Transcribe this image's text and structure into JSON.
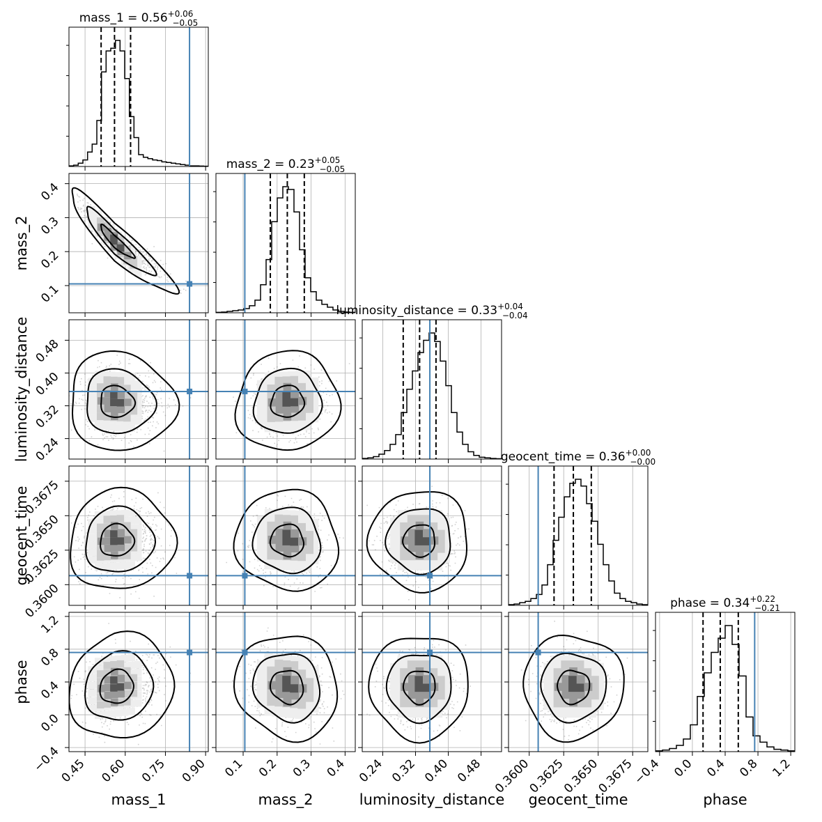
{
  "chart_data": {
    "type": "corner",
    "parameters": [
      {
        "name": "mass_1",
        "label": "mass_1",
        "range": [
          0.39,
          0.91
        ],
        "ticks": [
          0.45,
          0.6,
          0.75,
          0.9
        ],
        "tick_labels": [
          "0.45",
          "0.60",
          "0.75",
          "0.90"
        ],
        "truth": 0.84,
        "median": 0.56,
        "lower": 0.51,
        "upper": 0.62,
        "sd": 0.055,
        "skew": 0.06,
        "title_prefix": "mass_1 = 0.56",
        "title_sup": "+0.06",
        "title_sub": "−0.05",
        "hist": [
          0.5,
          1,
          2.5,
          5,
          11,
          17,
          35,
          72,
          88,
          90,
          96,
          88,
          67,
          38,
          22,
          9,
          7,
          6,
          5,
          4.5,
          3.5,
          3,
          2.5,
          2,
          1.5,
          1,
          0.5,
          0.5,
          0.3,
          0.2
        ]
      },
      {
        "name": "mass_2",
        "label": "mass_2",
        "range": [
          0.02,
          0.43
        ],
        "ticks": [
          0.1,
          0.2,
          0.3,
          0.4
        ],
        "tick_labels": [
          "0.1",
          "0.2",
          "0.3",
          "0.4"
        ],
        "truth": 0.105,
        "median": 0.23,
        "lower": 0.18,
        "upper": 0.28,
        "sd": 0.05,
        "skew": 0,
        "title_prefix": "mass_2 = 0.23",
        "title_sup": "+0.05",
        "title_sub": "−0.05",
        "hist": [
          0.3,
          0.5,
          1,
          1.5,
          2,
          3,
          5,
          9,
          20,
          38,
          65,
          82,
          90,
          88,
          72,
          45,
          25,
          15,
          9,
          6,
          4,
          2,
          1,
          0.5,
          0.3
        ]
      },
      {
        "name": "luminosity_distance",
        "label": "luminosity_distance",
        "range": [
          0.19,
          0.53
        ],
        "ticks": [
          0.24,
          0.32,
          0.4,
          0.48
        ],
        "tick_labels": [
          "0.24",
          "0.32",
          "0.40",
          "0.48"
        ],
        "truth": 0.355,
        "median": 0.33,
        "lower": 0.29,
        "upper": 0.37,
        "sd": 0.04,
        "skew": 0,
        "title_prefix": "luminosity_distance = 0.33",
        "title_sup": "+0.04",
        "title_sub": "−0.04",
        "hist": [
          0.5,
          1,
          2,
          4,
          7,
          12,
          20,
          38,
          57,
          72,
          87,
          97,
          103,
          96,
          80,
          60,
          38,
          22,
          12,
          6,
          3,
          1.5,
          1,
          0.5,
          0.3
        ]
      },
      {
        "name": "geocent_time",
        "label": "geocent_time",
        "range": [
          0.3585,
          0.3686
        ],
        "ticks": [
          0.36,
          0.3625,
          0.365,
          0.3675
        ],
        "tick_labels": [
          "0.3600",
          "0.3625",
          "0.3650",
          "0.3675"
        ],
        "truth": 0.36065,
        "median": 0.3632,
        "lower": 0.3618,
        "upper": 0.3645,
        "sd": 0.0012,
        "skew": 0,
        "title_prefix": "geocent_time = 0.36",
        "title_sup": "+0.00",
        "title_sub": "−0.00",
        "hist": [
          0.5,
          1,
          2,
          3,
          5,
          8,
          15,
          30,
          48,
          65,
          80,
          90,
          93,
          88,
          75,
          62,
          45,
          30,
          18,
          9,
          5,
          3,
          2,
          1,
          0.5
        ]
      },
      {
        "name": "phase",
        "label": "phase",
        "range": [
          -0.45,
          1.25
        ],
        "ticks": [
          -0.4,
          0.0,
          0.4,
          0.8,
          1.2
        ],
        "tick_labels": [
          "−0.4",
          "0.0",
          "0.4",
          "0.8",
          "1.2"
        ],
        "truth": 0.76,
        "median": 0.34,
        "lower": 0.13,
        "upper": 0.56,
        "sd": 0.21,
        "skew": 0,
        "title_prefix": "phase = 0.34",
        "title_sup": "+0.22",
        "title_sub": "−0.21",
        "hist": [
          0.5,
          1,
          2,
          4,
          8,
          17,
          35,
          50,
          63,
          72,
          80,
          68,
          48,
          22,
          10,
          6,
          3,
          1.5,
          1,
          0.5
        ]
      }
    ],
    "correlations": {
      "0-1": -0.93,
      "0-2": -0.05,
      "0-3": 0.05,
      "0-4": 0.1,
      "1-2": 0.05,
      "1-3": -0.05,
      "1-4": -0.1,
      "2-3": 0.0,
      "2-4": 0.0,
      "3-4": 0.0
    },
    "y_ticks": [
      null,
      {
        "ticks": [
          0.1,
          0.2,
          0.3,
          0.4
        ],
        "tick_labels": [
          "0.1",
          "0.2",
          "0.3",
          "0.4"
        ]
      },
      {
        "ticks": [
          0.24,
          0.32,
          0.4,
          0.48
        ],
        "tick_labels": [
          "0.24",
          "0.32",
          "0.40",
          "0.48"
        ]
      },
      {
        "ticks": [
          0.36,
          0.3625,
          0.365,
          0.3675
        ],
        "tick_labels": [
          "0.3600",
          "0.3625",
          "0.3650",
          "0.3675"
        ]
      },
      {
        "ticks": [
          -0.4,
          0.0,
          0.4,
          0.8,
          1.2
        ],
        "tick_labels": [
          "−0.4",
          "0.0",
          "0.4",
          "0.8",
          "1.2"
        ]
      }
    ],
    "truth_color": "#4682b4",
    "grid": true,
    "quantiles": [
      0.16,
      0.5,
      0.84
    ],
    "contour_levels": [
      0.39,
      0.86,
      0.99
    ]
  }
}
